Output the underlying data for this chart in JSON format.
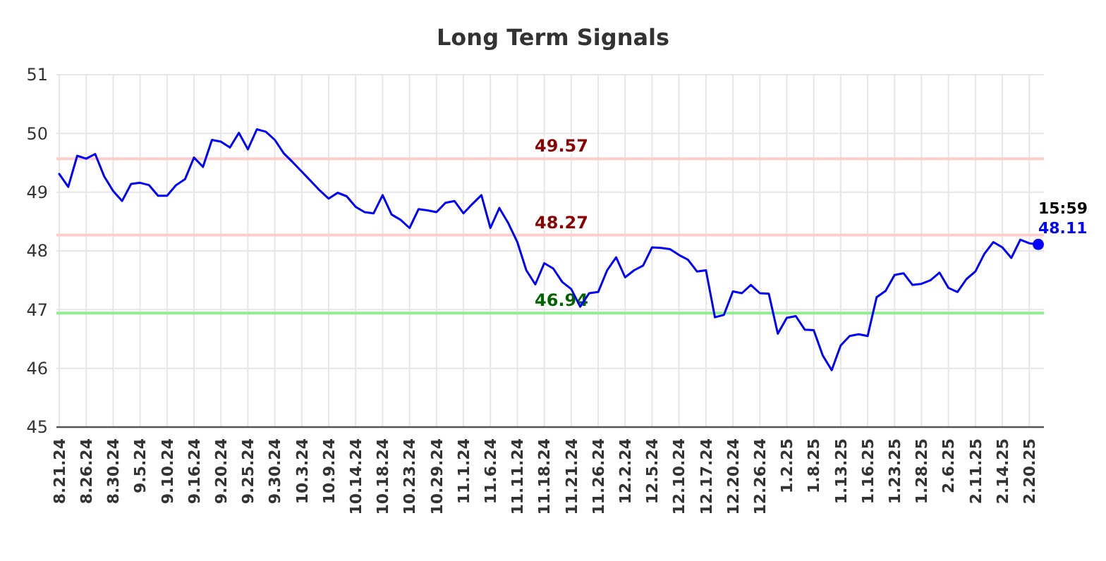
{
  "chart_data": {
    "type": "line",
    "title": "Long Term Signals",
    "categories": [
      "8.21.24",
      null,
      null,
      "8.26.24",
      null,
      null,
      "8.30.24",
      null,
      null,
      "9.5.24",
      null,
      null,
      "9.10.24",
      null,
      null,
      "9.16.24",
      null,
      null,
      "9.20.24",
      null,
      null,
      "9.25.24",
      null,
      null,
      "9.30.24",
      null,
      null,
      "10.3.24",
      null,
      null,
      "10.9.24",
      null,
      null,
      "10.14.24",
      null,
      null,
      "10.18.24",
      null,
      null,
      "10.23.24",
      null,
      null,
      "10.29.24",
      null,
      null,
      "11.1.24",
      null,
      null,
      "11.6.24",
      null,
      null,
      "11.11.24",
      null,
      null,
      "11.18.24",
      null,
      null,
      "11.21.24",
      null,
      null,
      "11.26.24",
      null,
      null,
      "12.2.24",
      null,
      null,
      "12.5.24",
      null,
      null,
      "12.10.24",
      null,
      null,
      "12.17.24",
      null,
      null,
      "12.20.24",
      null,
      null,
      "12.26.24",
      null,
      null,
      "1.2.25",
      null,
      null,
      "1.8.25",
      null,
      null,
      "1.13.25",
      null,
      null,
      "1.16.25",
      null,
      null,
      "1.23.25",
      null,
      null,
      "1.28.25",
      null,
      null,
      "2.6.25",
      null,
      null,
      "2.11.25",
      null,
      null,
      "2.14.25",
      null,
      null,
      "2.20.25",
      null
    ],
    "series": [
      {
        "color": "#0000ff",
        "values": [
          49.31,
          49.09,
          49.62,
          49.57,
          49.65,
          49.27,
          49.02,
          48.85,
          49.14,
          49.16,
          49.12,
          48.94,
          48.94,
          49.12,
          49.22,
          49.59,
          49.43,
          49.89,
          49.86,
          49.76,
          50.01,
          49.73,
          50.07,
          50.03,
          49.89,
          49.66,
          49.51,
          49.35,
          49.19,
          49.03,
          48.89,
          48.99,
          48.93,
          48.75,
          48.66,
          48.64,
          48.95,
          48.62,
          48.53,
          48.39,
          48.71,
          48.69,
          48.66,
          48.82,
          48.85,
          48.64,
          48.8,
          48.95,
          48.39,
          48.73,
          48.47,
          48.15,
          47.67,
          47.43,
          47.79,
          47.7,
          47.47,
          47.35,
          47.05,
          47.28,
          47.3,
          47.67,
          47.89,
          47.55,
          47.67,
          47.75,
          48.06,
          48.05,
          48.03,
          47.93,
          47.85,
          47.65,
          47.67,
          46.87,
          46.91,
          47.31,
          47.28,
          47.42,
          47.28,
          47.27,
          46.59,
          46.86,
          46.89,
          46.66,
          46.65,
          46.22,
          45.97,
          46.39,
          46.55,
          46.58,
          46.55,
          47.21,
          47.32,
          47.59,
          47.62,
          47.42,
          47.44,
          47.5,
          47.63,
          47.37,
          47.3,
          47.52,
          47.65,
          47.95,
          48.15,
          48.06,
          47.88,
          48.19,
          48.13,
          48.11
        ],
        "value_labels": [
          null,
          null,
          null,
          null,
          null,
          null,
          null,
          null,
          null,
          null,
          null,
          null,
          null,
          null,
          null,
          null,
          null,
          null,
          null,
          null,
          null,
          null,
          null,
          null,
          null,
          null,
          null,
          null,
          null,
          null,
          null,
          null,
          null,
          null,
          null,
          null,
          null,
          null,
          null,
          null,
          null,
          null,
          null,
          null,
          null,
          null,
          null,
          null,
          null,
          null,
          null,
          null,
          null,
          null,
          null,
          null,
          null,
          null,
          null,
          null,
          null,
          null,
          null,
          null,
          null,
          null,
          null,
          null,
          null,
          null,
          null,
          null,
          null,
          null,
          null,
          null,
          null,
          null,
          null,
          null,
          null,
          null,
          null,
          null,
          null,
          null,
          null,
          null,
          null,
          null,
          null,
          null,
          null,
          null,
          null,
          null,
          null,
          null,
          null,
          null,
          null,
          null,
          null,
          null,
          null,
          null,
          null,
          null,
          null,
          "48.11"
        ]
      }
    ],
    "ylim": [
      45,
      51
    ],
    "yticks": [
      45,
      46,
      47,
      48,
      49,
      50,
      51
    ],
    "grid": true,
    "marker": "none",
    "line_style": "solid",
    "ref_lines": [
      {
        "axis": "y",
        "value": 49.57,
        "label": "49.57",
        "color": "#ffcccc"
      },
      {
        "axis": "y",
        "value": 48.27,
        "label": "48.27",
        "color": "#ffcccc"
      },
      {
        "axis": "y",
        "value": 46.94,
        "label": "46.94",
        "color": "#90ee90"
      }
    ],
    "annotations": [
      "15:59"
    ]
  }
}
